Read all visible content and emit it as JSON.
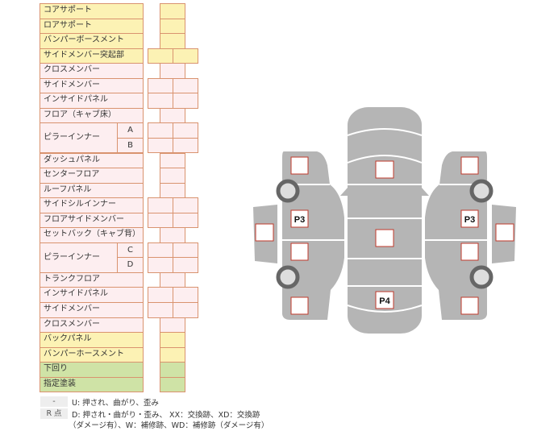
{
  "colors": {
    "yellow": "#fcf2b4",
    "pink": "#fdeef0",
    "green": "#cfe3a6",
    "border": "#d9936f",
    "body": "#b5b5b5",
    "mark_border": "#c0392b"
  },
  "rows": [
    {
      "label": "コアサポート",
      "cells": "single",
      "color": "yellow"
    },
    {
      "label": "ロアサポート",
      "cells": "single",
      "color": "yellow"
    },
    {
      "label": "バンパーボースメント",
      "cells": "single",
      "color": "yellow"
    },
    {
      "label": "サイドメンバー突起部",
      "cells": "double",
      "color": "yellow"
    },
    {
      "label": "クロスメンバー",
      "cells": "single",
      "color": "pink"
    },
    {
      "label": "サイドメンバー",
      "cells": "double",
      "color": "pink"
    },
    {
      "label": "インサイドパネル",
      "cells": "double",
      "color": "pink"
    },
    {
      "label": "フロア（キャブ床）",
      "cells": "single",
      "color": "pink"
    },
    {
      "label": "ピラーインナー",
      "sub": [
        "A",
        "B"
      ],
      "cells": "double",
      "color": "pink"
    },
    {
      "label": "ダッシュパネル",
      "cells": "single",
      "color": "pink"
    },
    {
      "label": "センターフロア",
      "cells": "single",
      "color": "pink"
    },
    {
      "label": "ルーフパネル",
      "cells": "single",
      "color": "pink"
    },
    {
      "label": "サイドシルインナー",
      "cells": "double",
      "color": "pink"
    },
    {
      "label": "フロアサイドメンバー",
      "cells": "double",
      "color": "pink"
    },
    {
      "label": "セットバック（キャブ背）",
      "cells": "single",
      "color": "pink"
    },
    {
      "label": "ピラーインナー",
      "sub": [
        "C",
        "D"
      ],
      "cells": "double",
      "color": "pink"
    },
    {
      "label": "トランクフロア",
      "cells": "single",
      "color": "pink"
    },
    {
      "label": "インサイドパネル",
      "cells": "double",
      "color": "pink"
    },
    {
      "label": "サイドメンバー",
      "cells": "double",
      "color": "pink"
    },
    {
      "label": "クロスメンバー",
      "cells": "single",
      "color": "pink"
    },
    {
      "label": "バックパネル",
      "cells": "single",
      "color": "yellow"
    },
    {
      "label": "バンパーホースメント",
      "cells": "single",
      "color": "yellow"
    },
    {
      "label": "下回り",
      "cells": "single",
      "color": "green"
    },
    {
      "label": "指定塗装",
      "cells": "single",
      "color": "green"
    }
  ],
  "legend": [
    {
      "key": "-",
      "text": "U: 押され、曲がり、歪み"
    },
    {
      "key": "R 点",
      "text": "D: 押され・曲がり・歪み、 XX：交換跡、XD：交換跡",
      "text2": "（ダメージ有）、W：補修跡、WD：補修跡（ダメージ有）"
    }
  ],
  "diagram": {
    "left_label": "P3",
    "right_label": "P3",
    "rear_label": "P4"
  }
}
